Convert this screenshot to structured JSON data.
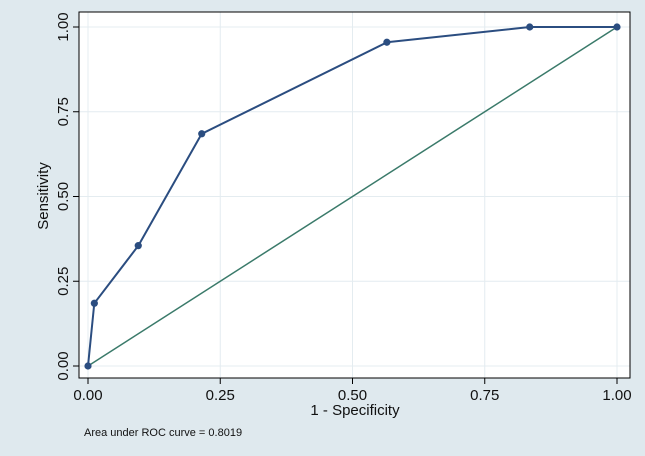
{
  "chart_data": {
    "type": "line",
    "title": "",
    "xlabel": "1 - Specificity",
    "ylabel": "Sensitivity",
    "xlim": [
      0,
      1
    ],
    "ylim": [
      0,
      1
    ],
    "x_ticks": [
      0,
      0.25,
      0.5,
      0.75,
      1
    ],
    "x_tick_labels": [
      "0.00",
      "0.25",
      "0.50",
      "0.75",
      "1.00"
    ],
    "y_ticks": [
      0,
      0.25,
      0.5,
      0.75,
      1
    ],
    "y_tick_labels": [
      "0.00",
      "0.25",
      "0.50",
      "0.75",
      "1.00"
    ],
    "grid": true,
    "series": [
      {
        "color": "#2b4d80",
        "markers": true,
        "points": [
          [
            0.0,
            0.0
          ],
          [
            0.012,
            0.185
          ],
          [
            0.095,
            0.355
          ],
          [
            0.215,
            0.685
          ],
          [
            0.565,
            0.955
          ],
          [
            0.835,
            1.0
          ],
          [
            1.0,
            1.0
          ]
        ]
      },
      {
        "color": "#3a7a6a",
        "markers": false,
        "points": [
          [
            0,
            0
          ],
          [
            1,
            1
          ]
        ]
      }
    ],
    "annotation": "Area under ROC curve = 0.8019"
  },
  "colors": {
    "outer_background": "#dfe9ee",
    "plot_background": "#ffffff",
    "grid": "#e4ecf0",
    "frame": "#000000"
  }
}
